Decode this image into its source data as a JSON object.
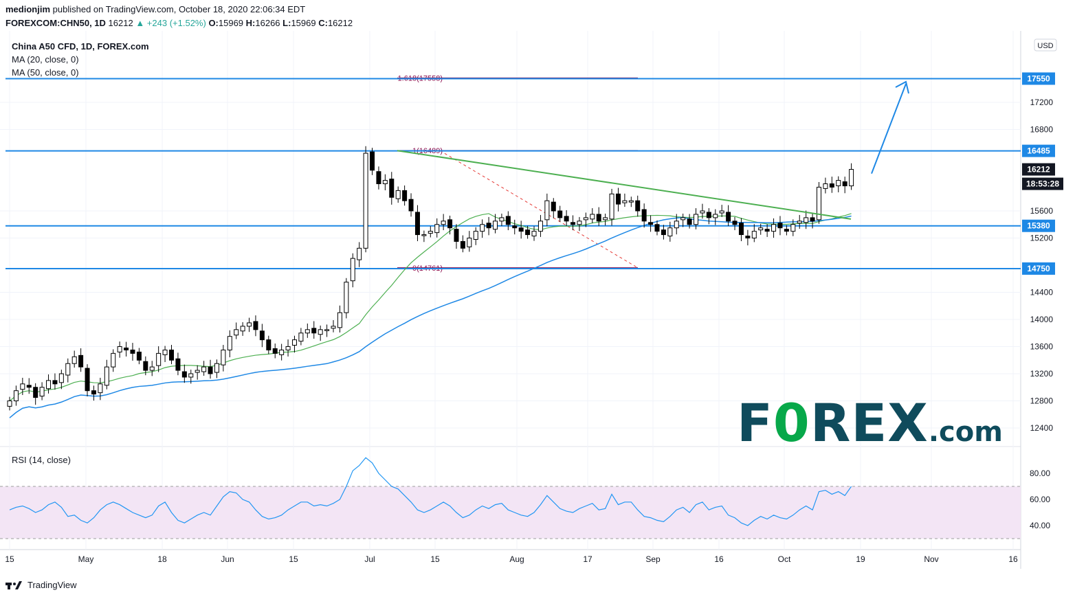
{
  "header": {
    "author": "medionjim",
    "published_text": "published on TradingView.com, October 18, 2020 22:06:34 EDT",
    "symbol_line": {
      "symbol": "FOREXCOM:CHN50, 1D",
      "last": "16212",
      "change": "▲ +243 (+1.52%)",
      "o_label": "O:",
      "o": "15969",
      "h_label": "H:",
      "h": "16266",
      "l_label": "L:",
      "l": "15969",
      "c_label": "C:",
      "c": "16212"
    }
  },
  "legend": {
    "title": "China A50 CFD, 1D, FOREX.com",
    "ma20": "MA (20, close, 0)",
    "ma50": "MA (50, close, 0)"
  },
  "rsi_panel": {
    "title": "RSI (14, close)"
  },
  "footer": {
    "brand": "TradingView"
  },
  "watermark": {
    "brand_a": "F",
    "brand_o": "0",
    "brand_b": "REX",
    "brand_com": ".com"
  },
  "colors": {
    "up": "#26a69a",
    "line_blue": "#1e88e5",
    "ma20": "#4caf50",
    "ma50": "#1e88e5",
    "fib": "#880e4f",
    "trend": "#4caf50",
    "rsi": "#2196f3",
    "rsi_band": "#f3e5f5"
  },
  "chart_data": [
    {
      "type": "candlestick",
      "title": "China A50 CFD, 1D, FOREX.com",
      "currency": "USD",
      "ylim": [
        12000,
        18200
      ],
      "y_ticks": [
        12400,
        12800,
        13200,
        13600,
        14000,
        14400,
        15200,
        15600,
        16800,
        17200
      ],
      "x_ticks": [
        "15",
        "May",
        "18",
        "Jun",
        "15",
        "Jul",
        "15",
        "Aug",
        "17",
        "Sep",
        "16",
        "Oct",
        "19",
        "Nov",
        "16"
      ],
      "horizontal_levels": [
        17550,
        16485,
        15380,
        14750
      ],
      "price_labels": [
        {
          "text": "17550",
          "value": 17550
        },
        {
          "text": "16485",
          "value": 16485
        },
        {
          "text": "16212",
          "value": 16212
        },
        {
          "text": "15380",
          "value": 15380
        },
        {
          "text": "14750",
          "value": 14750
        }
      ],
      "countdown": "18:53:28",
      "fib_levels": [
        {
          "label": "1.618(17558)",
          "value": 17558
        },
        {
          "label": "1(16489)",
          "value": 16489
        },
        {
          "label": "0(14761)",
          "value": 14761
        }
      ],
      "close_series": [
        12800,
        12950,
        13050,
        13000,
        12850,
        13000,
        13100,
        13050,
        13200,
        13350,
        13450,
        13300,
        12950,
        12900,
        13050,
        13300,
        13500,
        13600,
        13550,
        13500,
        13400,
        13250,
        13300,
        13500,
        13550,
        13400,
        13250,
        13150,
        13200,
        13250,
        13300,
        13200,
        13350,
        13550,
        13750,
        13850,
        13900,
        13950,
        13850,
        13700,
        13550,
        13500,
        13550,
        13600,
        13700,
        13800,
        13850,
        13800,
        13850,
        13850,
        13900,
        14100,
        14550,
        14900,
        15050,
        16450,
        16200,
        16000,
        16050,
        15800,
        15900,
        15750,
        15600,
        15250,
        15250,
        15300,
        15400,
        15450,
        15350,
        15150,
        15050,
        15200,
        15300,
        15400,
        15350,
        15450,
        15500,
        15400,
        15350,
        15300,
        15250,
        15300,
        15450,
        15750,
        15600,
        15500,
        15450,
        15400,
        15450,
        15500,
        15550,
        15450,
        15500,
        15850,
        15700,
        15750,
        15750,
        15600,
        15450,
        15400,
        15300,
        15250,
        15350,
        15450,
        15500,
        15400,
        15550,
        15600,
        15500,
        15550,
        15600,
        15450,
        15400,
        15250,
        15200,
        15300,
        15350,
        15300,
        15400,
        15350,
        15300,
        15400,
        15450,
        15500,
        15450,
        15950,
        16000,
        15950,
        16050,
        15969,
        16212
      ]
    },
    {
      "type": "line",
      "title": "RSI (14, close)",
      "ylim": [
        25,
        95
      ],
      "y_ticks": [
        40.0,
        60.0,
        80.0
      ],
      "band": [
        30,
        70
      ],
      "values": [
        52,
        54,
        55,
        53,
        50,
        52,
        56,
        58,
        54,
        47,
        48,
        44,
        42,
        46,
        52,
        56,
        58,
        56,
        53,
        50,
        48,
        46,
        48,
        55,
        58,
        50,
        44,
        42,
        45,
        48,
        50,
        48,
        55,
        62,
        66,
        65,
        60,
        58,
        52,
        47,
        45,
        46,
        48,
        52,
        55,
        58,
        58,
        55,
        56,
        55,
        57,
        60,
        70,
        82,
        86,
        92,
        88,
        80,
        75,
        70,
        68,
        63,
        58,
        52,
        50,
        52,
        55,
        58,
        55,
        50,
        46,
        48,
        52,
        55,
        53,
        56,
        57,
        52,
        50,
        48,
        47,
        50,
        56,
        63,
        58,
        53,
        51,
        50,
        53,
        55,
        57,
        52,
        53,
        64,
        56,
        58,
        58,
        52,
        47,
        46,
        44,
        43,
        47,
        52,
        54,
        50,
        56,
        58,
        52,
        54,
        55,
        48,
        46,
        42,
        40,
        44,
        47,
        45,
        48,
        46,
        45,
        48,
        52,
        55,
        52,
        66,
        67,
        64,
        66,
        63,
        70
      ]
    }
  ],
  "axis": {
    "currency_label": "USD"
  }
}
